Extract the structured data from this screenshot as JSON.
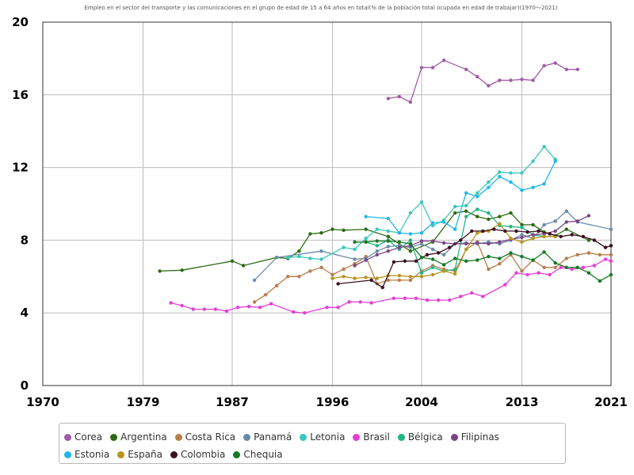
{
  "chart_data": {
    "type": "line",
    "title": "",
    "subtitle": "Empleo en el sector del transporte y las comunicaciones en el grupo de edad de 15 a 64 años en total(% de la población total ocupada en edad de trabajar)(1970～2021)",
    "xlabel": "",
    "ylabel": "",
    "xlim": [
      1970,
      2021
    ],
    "ylim": [
      0,
      20
    ],
    "x_ticks": [
      "1970",
      "1979",
      "1987",
      "1996",
      "2004",
      "2013",
      "2021"
    ],
    "y_ticks": [
      "0",
      "4",
      "8",
      "12",
      "16",
      "20"
    ],
    "grid": true,
    "legend_position": "bottom",
    "series": [
      {
        "name": "Corea",
        "color": "#a05ba6",
        "x": [
          2001,
          2002,
          2003,
          2004,
          2005,
          2006,
          2008,
          2009,
          2010,
          2011,
          2012,
          2013,
          2014,
          2015,
          2016,
          2017,
          2018
        ],
        "y": [
          15.8,
          15.9,
          15.6,
          17.5,
          17.5,
          17.9,
          17.4,
          17.0,
          16.5,
          16.8,
          16.8,
          16.85,
          16.8,
          17.6,
          17.75,
          17.4,
          17.4
        ]
      },
      {
        "name": "Argentina",
        "color": "#2d6b12",
        "x": [
          1980.5,
          1982.5,
          1987,
          1988,
          1991,
          1992,
          1993,
          1994,
          1995,
          1996,
          1997,
          1999,
          2001,
          2003,
          2005,
          2007,
          2008,
          2009,
          2010,
          2011,
          2012,
          2013,
          2014,
          2015,
          2016,
          2017,
          2019
        ],
        "y": [
          6.3,
          6.35,
          6.85,
          6.6,
          7.05,
          7.0,
          7.4,
          8.35,
          8.4,
          8.6,
          8.55,
          8.6,
          8.2,
          7.4,
          7.9,
          9.5,
          9.6,
          9.3,
          9.15,
          9.3,
          9.5,
          8.85,
          8.85,
          8.45,
          8.25,
          8.6,
          8.0
        ]
      },
      {
        "name": "Costa Rica",
        "color": "#b87d4b",
        "x": [
          1989,
          1990,
          1991,
          1992,
          1993,
          1994,
          1995,
          1996,
          1997,
          1998,
          1999,
          2000,
          2001,
          2002,
          2003,
          2004,
          2005,
          2006,
          2007,
          2008,
          2009,
          2010,
          2011,
          2012,
          2013,
          2014,
          2015,
          2016,
          2017,
          2018,
          2019,
          2020,
          2021
        ],
        "y": [
          4.6,
          5.0,
          5.5,
          6.0,
          6.0,
          6.3,
          6.5,
          6.1,
          6.4,
          6.7,
          7.1,
          5.6,
          5.8,
          5.8,
          5.8,
          6.3,
          6.6,
          6.4,
          6.3,
          7.5,
          7.9,
          6.4,
          6.7,
          7.2,
          6.3,
          6.9,
          6.5,
          6.5,
          7.0,
          7.2,
          7.3,
          7.2,
          7.2
        ]
      },
      {
        "name": "Panamá",
        "color": "#6b8aab",
        "x": [
          1989,
          1991,
          1995,
          1998,
          1999,
          2000,
          2001,
          2002,
          2003,
          2004,
          2005,
          2006,
          2007,
          2008,
          2009,
          2010,
          2011,
          2012,
          2013,
          2014,
          2015,
          2016,
          2017,
          2018,
          2021
        ],
        "y": [
          5.8,
          7.05,
          7.4,
          6.95,
          7.0,
          7.4,
          7.65,
          7.7,
          7.6,
          7.8,
          7.5,
          7.2,
          7.8,
          7.85,
          7.8,
          7.9,
          7.8,
          8.0,
          8.3,
          8.1,
          8.85,
          9.05,
          9.6,
          9.0,
          8.6
        ]
      },
      {
        "name": "Letonia",
        "color": "#3bc7bd",
        "x": [
          1992,
          1993,
          1994,
          1995,
          1997,
          1998,
          1999,
          2000,
          2001,
          2002,
          2003,
          2004,
          2005,
          2006,
          2007,
          2008,
          2009,
          2010,
          2011,
          2012,
          2013,
          2014,
          2015,
          2016
        ],
        "y": [
          7.05,
          7.1,
          7.0,
          6.95,
          7.6,
          7.5,
          8.1,
          8.6,
          8.5,
          8.4,
          9.5,
          10.1,
          8.8,
          9.1,
          9.85,
          9.9,
          10.6,
          11.2,
          11.75,
          11.7,
          11.7,
          12.35,
          13.15,
          12.45
        ]
      },
      {
        "name": "Brasil",
        "color": "#e53fd6",
        "x": [
          1981.5,
          1982.5,
          1983.5,
          1984.5,
          1985.5,
          1986.5,
          1987.5,
          1988.5,
          1989.5,
          1990.5,
          1992.5,
          1993.5,
          1995.5,
          1996.5,
          1997.5,
          1998.5,
          1999.5,
          2001.5,
          2002.5,
          2003.5,
          2004.5,
          2005.5,
          2006.5,
          2007.5,
          2008.5,
          2009.5,
          2011.5,
          2012.5,
          2013.5,
          2014.5,
          2015.5,
          2016.5,
          2017.5,
          2018.5,
          2019.5,
          2020.5,
          2021
        ],
        "y": [
          4.55,
          4.4,
          4.2,
          4.2,
          4.2,
          4.1,
          4.3,
          4.35,
          4.3,
          4.5,
          4.05,
          4.0,
          4.3,
          4.3,
          4.6,
          4.6,
          4.55,
          4.8,
          4.8,
          4.8,
          4.7,
          4.7,
          4.7,
          4.9,
          5.1,
          4.9,
          5.55,
          6.2,
          6.1,
          6.2,
          6.1,
          6.5,
          6.4,
          6.5,
          6.6,
          6.95,
          6.85
        ]
      },
      {
        "name": "Bélgica",
        "color": "#22b585",
        "x": [
          1999,
          2000,
          2001,
          2002,
          2003,
          2004,
          2005,
          2006,
          2007,
          2008,
          2009,
          2010,
          2011,
          2012,
          2013,
          2014,
          2015,
          2016
        ],
        "y": [
          7.9,
          7.7,
          8.0,
          7.5,
          8.0,
          6.2,
          6.5,
          6.3,
          6.4,
          9.3,
          9.7,
          9.5,
          8.8,
          8.75,
          8.7,
          8.3,
          8.2,
          8.2
        ]
      },
      {
        "name": "Filipinas",
        "color": "#7a4586",
        "x": [
          1998,
          1999,
          2000,
          2001,
          2002,
          2003,
          2004,
          2005,
          2006,
          2007,
          2008,
          2009,
          2010,
          2011,
          2012,
          2013,
          2014,
          2015,
          2016,
          2017,
          2018,
          2019
        ],
        "y": [
          6.6,
          6.9,
          7.2,
          7.4,
          7.6,
          7.7,
          7.95,
          7.95,
          7.85,
          7.8,
          7.8,
          7.85,
          7.8,
          7.9,
          8.05,
          8.15,
          8.3,
          8.35,
          8.5,
          9.0,
          9.05,
          9.35
        ]
      },
      {
        "name": "Estonia",
        "color": "#20b7e8",
        "x": [
          1999,
          2001,
          2002,
          2003,
          2004,
          2005,
          2006,
          2007,
          2008,
          2009,
          2010,
          2011,
          2012,
          2013,
          2014,
          2015,
          2016
        ],
        "y": [
          9.3,
          9.2,
          8.4,
          8.35,
          8.4,
          8.95,
          9.0,
          8.6,
          10.6,
          10.4,
          10.9,
          11.5,
          11.2,
          10.75,
          10.9,
          11.1,
          12.35
        ]
      },
      {
        "name": "España",
        "color": "#b8941e",
        "x": [
          1996,
          1997,
          1998,
          1999,
          2000,
          2001,
          2002,
          2003,
          2004,
          2005,
          2006,
          2007,
          2008,
          2009,
          2010,
          2011,
          2012,
          2013,
          2014,
          2015,
          2016
        ],
        "y": [
          5.9,
          6.0,
          5.9,
          5.95,
          5.9,
          6.05,
          6.05,
          6.0,
          6.0,
          6.1,
          6.3,
          6.15,
          7.5,
          8.4,
          8.5,
          8.9,
          8.1,
          7.9,
          8.1,
          8.2,
          8.2
        ]
      },
      {
        "name": "Colombia",
        "color": "#3a1020",
        "x": [
          1996.5,
          1999.5,
          2000.5,
          2001.5,
          2002.5,
          2003.5,
          2004.5,
          2005.5,
          2006.5,
          2007.5,
          2008.5,
          2009.5,
          2010.5,
          2011.5,
          2012.5,
          2013.5,
          2014.5,
          2015.5,
          2016.5,
          2017.5,
          2018.5,
          2019.5,
          2020.5,
          2021
        ],
        "y": [
          5.6,
          5.8,
          5.4,
          6.8,
          6.85,
          6.85,
          7.2,
          7.3,
          7.6,
          8.0,
          8.5,
          8.5,
          8.6,
          8.5,
          8.5,
          8.45,
          8.5,
          8.35,
          8.2,
          8.3,
          8.2,
          8.0,
          7.6,
          7.7
        ]
      },
      {
        "name": "Chequia",
        "color": "#157a24",
        "x": [
          1998,
          1999,
          2000,
          2001,
          2002,
          2003,
          2004,
          2005,
          2006,
          2007,
          2008,
          2009,
          2010,
          2011,
          2012,
          2013,
          2014,
          2015,
          2016,
          2017,
          2018,
          2019,
          2020,
          2021
        ],
        "y": [
          7.9,
          7.9,
          7.95,
          7.95,
          7.9,
          7.8,
          7.05,
          6.95,
          6.65,
          7.0,
          6.85,
          6.9,
          7.1,
          7.0,
          7.3,
          7.1,
          6.9,
          7.35,
          6.75,
          6.5,
          6.5,
          6.2,
          5.75,
          6.1
        ]
      }
    ]
  }
}
